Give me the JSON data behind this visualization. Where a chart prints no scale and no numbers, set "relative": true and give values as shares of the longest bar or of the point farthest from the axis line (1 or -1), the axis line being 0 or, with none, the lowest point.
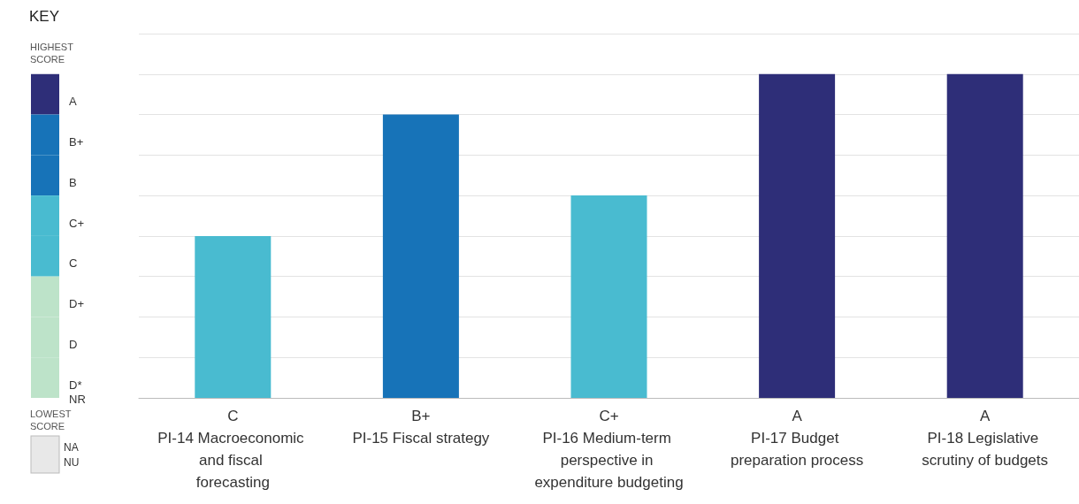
{
  "chart_data": [
    {
      "type": "other",
      "title": "KEY",
      "categories": [
        "A",
        "B+",
        "B",
        "C+",
        "C",
        "D+",
        "D",
        "D*\nNR"
      ],
      "colors": [
        "#2e2e78",
        "#1773b8",
        "#1773b8",
        "#49bbd0",
        "#49bbd0",
        "#bde3c9",
        "#bde3c9",
        "#bde3c9"
      ],
      "annotations": [
        "HIGHEST SCORE",
        "LOWEST SCORE",
        "NA\nNU"
      ]
    },
    {
      "type": "bar",
      "relative": true,
      "categories": [
        "PI-14 Macroeconomic and fiscal forecasting",
        "PI-15 Fiscal strategy",
        "PI-16 Medium-term perspective in expenditure budgeting",
        "PI-17 Budget preparation process",
        "PI-18 Legislative scrutiny of budgets"
      ],
      "values": [
        0.5,
        0.875,
        0.625,
        1,
        1
      ],
      "annotations": [
        "C",
        "B+",
        "C+",
        "A",
        "A"
      ],
      "colors": [
        "#49bbd0",
        "#1773b8",
        "#49bbd0",
        "#2e2e78",
        "#2e2e78"
      ],
      "grid": "y"
    }
  ]
}
